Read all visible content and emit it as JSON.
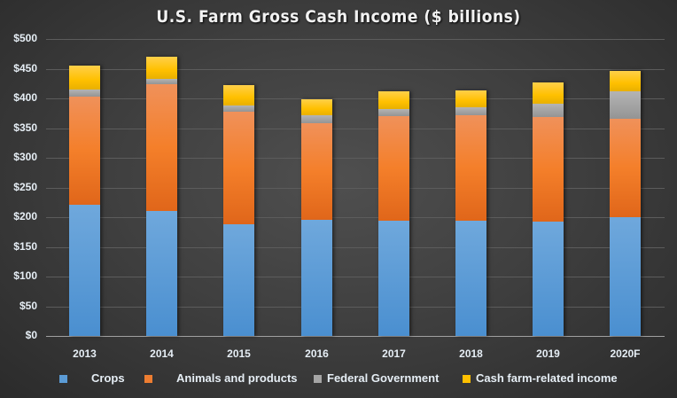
{
  "chart_data": {
    "type": "bar",
    "stacked": true,
    "title": "U.S. Farm Gross Cash Income ($ billions)",
    "xlabel": "",
    "ylabel": "",
    "ylim": [
      0,
      500
    ],
    "yticks": [
      "$0",
      "$50",
      "$100",
      "$150",
      "$200",
      "$250",
      "$300",
      "$350",
      "$400",
      "$450",
      "$500"
    ],
    "ytick_values": [
      0,
      50,
      100,
      150,
      200,
      250,
      300,
      350,
      400,
      450,
      500
    ],
    "grid": true,
    "legend_position": "bottom",
    "categories": [
      "2013",
      "2014",
      "2015",
      "2016",
      "2017",
      "2018",
      "2019",
      "2020F"
    ],
    "series": [
      {
        "name": "Crops",
        "color": "#5b9bd5",
        "values": [
          221,
          210,
          188,
          196,
          194,
          194,
          193,
          200
        ]
      },
      {
        "name": "Animals and products",
        "color": "#ed7d31",
        "values": [
          182,
          214,
          190,
          162,
          176,
          178,
          176,
          166
        ]
      },
      {
        "name": "Federal Government",
        "color": "#a5a5a5",
        "values": [
          12,
          9,
          10,
          14,
          12,
          13,
          22,
          46
        ]
      },
      {
        "name": "Cash farm-related income",
        "color": "#ffc000",
        "values": [
          40,
          37,
          34,
          26,
          30,
          28,
          36,
          34
        ]
      }
    ],
    "totals": [
      455,
      470,
      422,
      398,
      412,
      413,
      427,
      446
    ]
  }
}
